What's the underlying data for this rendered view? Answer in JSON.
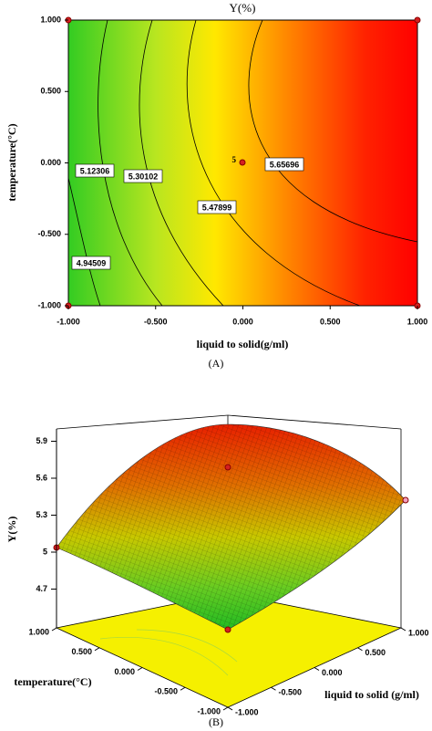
{
  "chart_data": [
    {
      "type": "contour",
      "title": "Y(%)",
      "xlabel": "liquid to solid(g/ml)",
      "ylabel": "temperature(°C)",
      "caption": "(A)",
      "xlim": [
        -1,
        1
      ],
      "ylim": [
        -1,
        1
      ],
      "xticks": [
        {
          "value": -1,
          "label": "-1.000"
        },
        {
          "value": -0.5,
          "label": "-0.500"
        },
        {
          "value": 0,
          "label": "0.000"
        },
        {
          "value": 0.5,
          "label": "0.500"
        },
        {
          "value": 1,
          "label": "1.000"
        }
      ],
      "yticks": [
        {
          "value": -1,
          "label": "-1.000"
        },
        {
          "value": -0.5,
          "label": "-0.500"
        },
        {
          "value": 0,
          "label": "0.000"
        },
        {
          "value": 0.5,
          "label": "0.500"
        },
        {
          "value": 1,
          "label": "1.000"
        }
      ],
      "levels": [
        4.94509,
        5.12306,
        5.30102,
        5.47899,
        5.65696
      ],
      "center_label": "5"
    },
    {
      "type": "surface",
      "zlabel": "Y(%)",
      "xlabel": "liquid to solid (g/ml)",
      "ylabel": "temperature(°C)",
      "caption": "(B)",
      "zlim": [
        4.4,
        6.0
      ],
      "zticks": [
        4.7,
        5,
        5.3,
        5.6,
        5.9
      ],
      "xlim": [
        -1,
        1
      ],
      "ylim": [
        -1,
        1
      ],
      "xticks": [
        {
          "value": -1,
          "label": "-1.000"
        },
        {
          "value": -0.5,
          "label": "-0.500"
        },
        {
          "value": 0,
          "label": "0.000"
        },
        {
          "value": 0.5,
          "label": "0.500"
        },
        {
          "value": 1,
          "label": "1.000"
        }
      ],
      "yticks": [
        {
          "value": 1,
          "label": "1.000"
        },
        {
          "value": 0.5,
          "label": "0.500"
        },
        {
          "value": 0,
          "label": "0.000"
        },
        {
          "value": -0.5,
          "label": "-0.500"
        },
        {
          "value": -1,
          "label": "-1.000"
        }
      ]
    }
  ]
}
